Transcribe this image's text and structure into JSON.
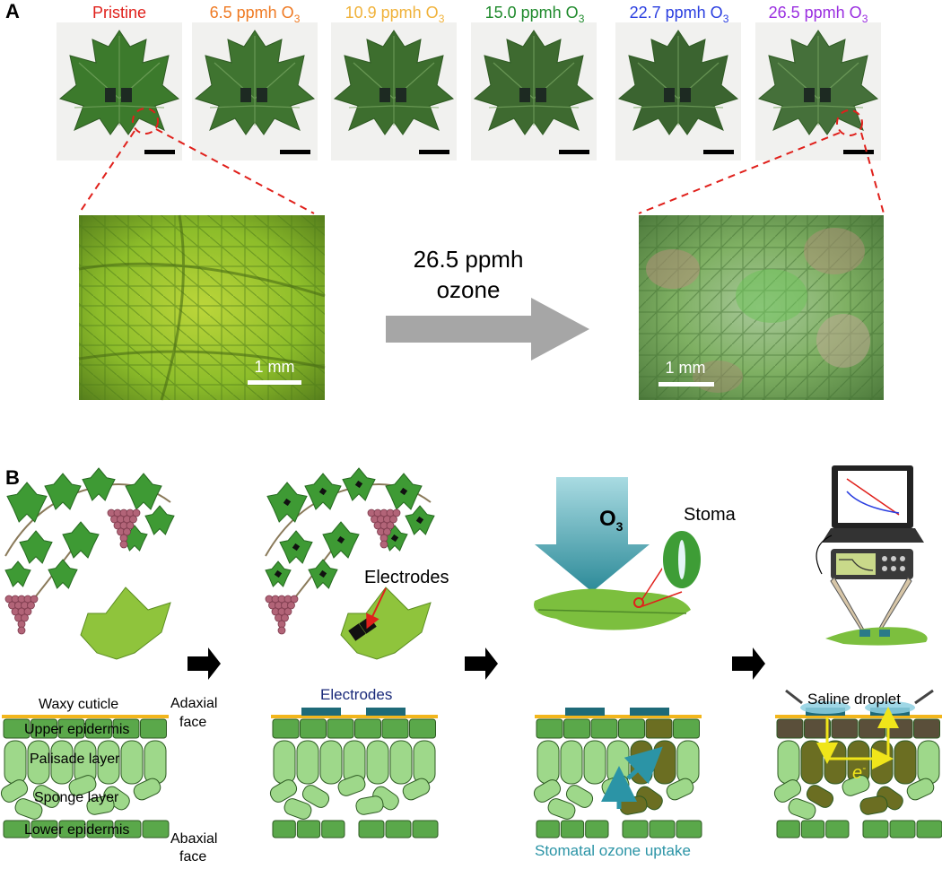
{
  "panel_a": {
    "label": "A",
    "conditions": [
      {
        "label": "Pristine",
        "sub": "",
        "color": "#e0201b"
      },
      {
        "label": "6.5 ppmh O",
        "sub": "3",
        "color": "#ef7a23"
      },
      {
        "label": "10.9 ppmh O",
        "sub": "3",
        "color": "#f0b23a"
      },
      {
        "label": "15.0 ppmh O",
        "sub": "3",
        "color": "#1f8a2c"
      },
      {
        "label": "22.7 ppmh O",
        "sub": "3",
        "color": "#2a3ee0"
      },
      {
        "label": "26.5 ppmh O",
        "sub": "3",
        "color": "#9a2ee0"
      }
    ],
    "arrow_line1": "26.5 ppmh",
    "arrow_line2": "ozone",
    "scale_left": "1 mm",
    "scale_right": "1 mm"
  },
  "panel_b": {
    "label": "B",
    "electrodes_label": "Electrodes",
    "o3_main": "O",
    "o3_sub": "3",
    "stoma_label": "Stoma",
    "layers": {
      "waxy_cuticle": "Waxy cuticle",
      "upper_epidermis": "Upper epidermis",
      "palisade": "Palisade layer",
      "sponge": "Sponge layer",
      "lower_epidermis": "Lower epidermis"
    },
    "adaxial_l1": "Adaxial",
    "adaxial_l2": "face",
    "abaxial_l1": "Abaxial",
    "abaxial_l2": "face",
    "electrodes_cross": "Electrodes",
    "uptake_label": "Stomatal ozone uptake",
    "saline_label": "Saline droplet",
    "electron_label": "e",
    "electron_sup": "-"
  },
  "colors": {
    "leaf_dark": "#3f7a2f",
    "leaf_mid": "#5e9e3c",
    "epidermis": "#5aa84a",
    "palisade": "#9ed88a",
    "damaged": "#6b6e22",
    "cuticle": "#f2b61c",
    "electrode": "#1e6a78",
    "uptake": "#2b94a6",
    "title_blue": "#1a2a7a"
  }
}
